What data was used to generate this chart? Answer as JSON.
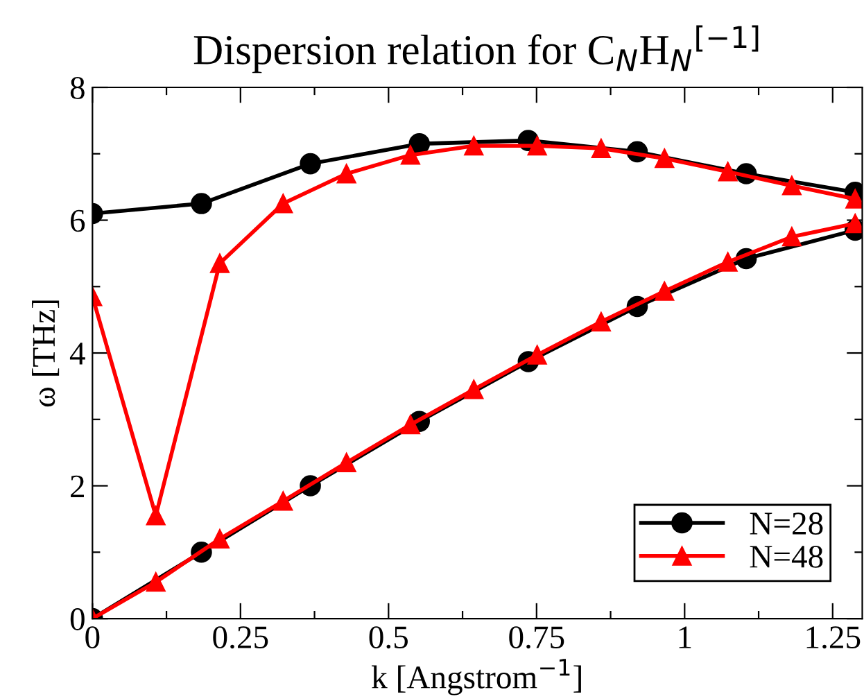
{
  "chart_data": {
    "type": "line",
    "title": "Dispersion relation for C$_{N}$H$_{N}$$^{[−1]}$",
    "xlabel": "k [Angstrom$^{−1}$]",
    "ylabel": "ω [THz]",
    "xlim": [
      0,
      1.3
    ],
    "ylim": [
      0,
      8
    ],
    "xticks": [
      0,
      {
        "value": 0.125,
        "label": null
      },
      0.25,
      {
        "value": 0.375,
        "label": null
      },
      0.5,
      {
        "value": 0.625,
        "label": null
      },
      0.75,
      {
        "value": 0.875,
        "label": null
      },
      1,
      {
        "value": 1.125,
        "label": null
      },
      1.25
    ],
    "yticks": [
      0,
      {
        "value": 1,
        "label": null
      },
      2,
      {
        "value": 3,
        "label": null
      },
      4,
      {
        "value": 5,
        "label": null
      },
      6,
      {
        "value": 7,
        "label": null
      },
      8
    ],
    "grid": false,
    "legend": "bottom right",
    "line_style": "solid",
    "series": [
      {
        "name": "N=28",
        "color": "#000000",
        "marker": "circle",
        "x": [
          0,
          0.184,
          0.368,
          0.552,
          0.736,
          0.92,
          1.104,
          1.288,
          null,
          0,
          0.184,
          0.368,
          0.552,
          0.736,
          0.92,
          1.104,
          1.288
        ],
        "values": [
          0,
          1.0,
          2.0,
          2.97,
          3.87,
          4.7,
          5.42,
          5.85,
          null,
          6.1,
          6.25,
          6.85,
          7.15,
          7.2,
          7.03,
          6.7,
          6.42
        ]
      },
      {
        "name": "N=48",
        "color": "#ff0000",
        "marker": "triangle",
        "x": [
          0,
          0.107,
          0.215,
          0.322,
          0.429,
          0.537,
          0.644,
          0.751,
          0.859,
          0.966,
          1.073,
          1.181,
          1.288,
          null,
          0,
          0.107,
          0.215,
          0.322,
          0.429,
          0.537,
          0.644,
          0.751,
          0.859,
          0.966,
          1.073,
          1.181,
          1.288
        ],
        "values": [
          0,
          0.55,
          1.2,
          1.77,
          2.35,
          2.92,
          3.45,
          3.97,
          4.47,
          4.93,
          5.37,
          5.75,
          5.95,
          null,
          4.85,
          1.55,
          5.35,
          6.25,
          6.7,
          6.98,
          7.12,
          7.12,
          7.08,
          6.93,
          6.73,
          6.52,
          6.32
        ]
      }
    ]
  }
}
